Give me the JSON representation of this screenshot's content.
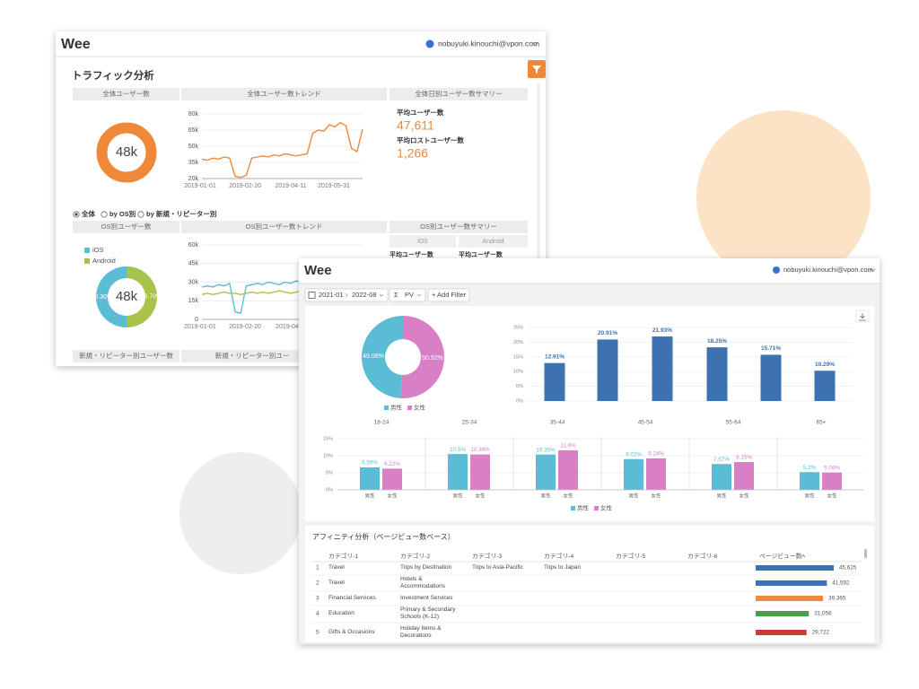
{
  "back_window": {
    "logo": "Wee",
    "user": "nobuyuki.kinouchi@vpon.com",
    "title": "トラフィック分析",
    "section_headers": [
      "全体ユーザー数",
      "全体ユーザー数トレンド",
      "全体日別ユーザー数サマリー"
    ],
    "total_donut": {
      "center_label": "48k",
      "color": "#f0883a"
    },
    "total_trend": {
      "type": "line",
      "color": "#f0883a",
      "values": [
        38000,
        37000,
        39000,
        38000,
        40000,
        39000,
        22000,
        21000,
        23000,
        39000,
        40000,
        41000,
        40000,
        42000,
        41000,
        43000,
        42000,
        41000,
        42000,
        43000,
        62000,
        65000,
        64000,
        70000,
        68000,
        72000,
        69000,
        48000,
        45000,
        66000
      ],
      "ylim": [
        20000,
        80000
      ],
      "yticks": [
        {
          "value": 20000,
          "label": "20k"
        },
        {
          "value": 35000,
          "label": "35k"
        },
        {
          "value": 50000,
          "label": "50k"
        },
        {
          "value": 65000,
          "label": "65k"
        },
        {
          "value": 80000,
          "label": "80k"
        }
      ],
      "xlabels": [
        "2019-01-01",
        "2019-02-20",
        "2019-04-11",
        "2019-05-31"
      ]
    },
    "summary": [
      {
        "label": "平均ユーザー数",
        "value": "47,611"
      },
      {
        "label": "平均ロストユーザー数",
        "value": "1,266"
      }
    ],
    "filters": [
      "全体",
      "by OS別",
      "by 新規・リピーター別"
    ],
    "os_headers": [
      "OS別ユーザー数",
      "OS別ユーザー数トレンド",
      "OS別ユーザー数サマリー"
    ],
    "os_donut": {
      "type": "pie",
      "center_label": "48k",
      "series": [
        {
          "name": "iOS",
          "color": "#5bbcd6",
          "value": 50.3,
          "value_label": "50.30%"
        },
        {
          "name": "Android",
          "color": "#a6c44a",
          "value": 49.7,
          "value_label": "49.70%"
        }
      ]
    },
    "os_trend": {
      "type": "line",
      "ylim": [
        0,
        60000
      ],
      "yticks": [
        0,
        {
          "value": 15000,
          "label": "15k"
        },
        {
          "value": 30000,
          "label": "30k"
        },
        {
          "value": 45000,
          "label": "45k"
        },
        {
          "value": 60000,
          "label": "60k"
        }
      ],
      "xlabels": [
        "2019-01-01",
        "2019-02-20",
        "2019-04"
      ],
      "series": [
        {
          "color": "#5bbcd6",
          "values": [
            26000,
            27000,
            26000,
            28000,
            27000,
            29000,
            6000,
            5000,
            27000,
            28000,
            29000,
            28000,
            30000,
            29000,
            28000,
            30000,
            29000,
            31000,
            30000,
            29000,
            30000,
            31000,
            30000,
            32000,
            31000,
            30000,
            31000,
            32000,
            31000,
            30000
          ]
        },
        {
          "color": "#a6c44a",
          "values": [
            20000,
            21000,
            20000,
            21000,
            22000,
            21000,
            21000,
            20000,
            21000,
            22000,
            21000,
            22000,
            21000,
            22000,
            23000,
            22000,
            21000,
            22000,
            23000,
            22000,
            23000,
            22000,
            23000,
            24000,
            23000,
            22000,
            23000,
            24000,
            23000,
            22000
          ]
        }
      ]
    },
    "os_summary": {
      "columns": [
        "iOS",
        "Android"
      ],
      "row_labels": [
        "平均ユーザー数",
        "平均ユーザー数"
      ]
    },
    "bottom_headers": [
      "新規・リピーター別ユーザー数",
      "新規・リピーター別ユー"
    ]
  },
  "front_window": {
    "logo": "Wee",
    "user": "nobuyuki.kinouchi@vpon.com",
    "toolbar": {
      "from": "2021-01",
      "to": "2022-08",
      "sigma": "Σ",
      "metric": "PV",
      "add_filter": "+ Add Filter"
    },
    "gender_pie": {
      "type": "pie",
      "series": [
        {
          "name": "男性",
          "color": "#5bbcd6",
          "value": 49.08,
          "value_label": "49.08%"
        },
        {
          "name": "女性",
          "color": "#d97fc5",
          "value": 50.92,
          "value_label": "50.92%"
        }
      ]
    },
    "age_bar": {
      "type": "bar",
      "color": "#3d72b0",
      "values": [
        12.91,
        20.91,
        21.93,
        18.25,
        15.71,
        10.29
      ],
      "value_labels": [
        "12.91%",
        "20.91%",
        "21.93%",
        "18.25%",
        "15.71%",
        "10.29%"
      ],
      "ylim": [
        0,
        25
      ],
      "yticks": [
        {
          "value": 0,
          "label": "0%"
        },
        {
          "value": 5,
          "label": "5%"
        },
        {
          "value": 10,
          "label": "10%"
        },
        {
          "value": 15,
          "label": "15%"
        },
        {
          "value": 20,
          "label": "20%"
        },
        {
          "value": 25,
          "label": "25%"
        }
      ]
    },
    "age_gender": {
      "type": "bar",
      "categories": [
        "18-24",
        "25-34",
        "35-44",
        "45-54",
        "55-64",
        "65+"
      ],
      "ylim": [
        0,
        15
      ],
      "yticks": [
        {
          "value": 0,
          "label": "0%"
        },
        {
          "value": 5,
          "label": "5%"
        },
        {
          "value": 10,
          "label": "10%"
        },
        {
          "value": 15,
          "label": "15%"
        }
      ],
      "series": [
        {
          "name": "男性",
          "color": "#5bbcd6",
          "values": [
            6.59,
            10.5,
            10.35,
            9.02,
            7.57,
            5.2
          ],
          "value_labels": [
            "6.59%",
            "10.5%",
            "10.35%",
            "9.02%",
            "7.57%",
            "5.2%"
          ]
        },
        {
          "name": "女性",
          "color": "#d97fc5",
          "values": [
            6.22,
            10.38,
            11.6,
            9.24,
            8.15,
            5.09
          ],
          "value_labels": [
            "6.22%",
            "10.38%",
            "11.6%",
            "9.24%",
            "8.15%",
            "5.09%"
          ]
        }
      ]
    },
    "affinity": {
      "title": "アフィニティ分析（ページビュー数ベース）",
      "columns": [
        "カテゴリ-1",
        "カテゴリ-2",
        "カテゴリ-3",
        "カテゴリ-4",
        "カテゴリ-5",
        "カテゴリ-6",
        "ページビュー数"
      ],
      "rows": [
        {
          "rank": "1",
          "cells": [
            "Travel",
            "Trips by Destination",
            "Trips to Asia-Pacific",
            "Trips to Japan"
          ],
          "pageviews": 45625,
          "pageviews_label": "45,625",
          "color": "#3d72b0"
        },
        {
          "rank": "2",
          "cells": [
            "Travel",
            "Hotels & Accommodations"
          ],
          "pageviews": 41592,
          "pageviews_label": "41,592",
          "color": "#3d72b0"
        },
        {
          "rank": "3",
          "cells": [
            "Financial Services",
            "Investment Services"
          ],
          "pageviews": 39365,
          "pageviews_label": "39,365",
          "color": "#ef8a3a"
        },
        {
          "rank": "4",
          "cells": [
            "Education",
            "Primary & Secondary Schools (K-12)"
          ],
          "pageviews": 31056,
          "pageviews_label": "31,056",
          "color": "#4aa04a"
        },
        {
          "rank": "5",
          "cells": [
            "Gifts & Occasions",
            "Holiday Items & Decorations"
          ],
          "pageviews": 29722,
          "pageviews_label": "29,722",
          "color": "#cc3a33"
        }
      ]
    }
  }
}
